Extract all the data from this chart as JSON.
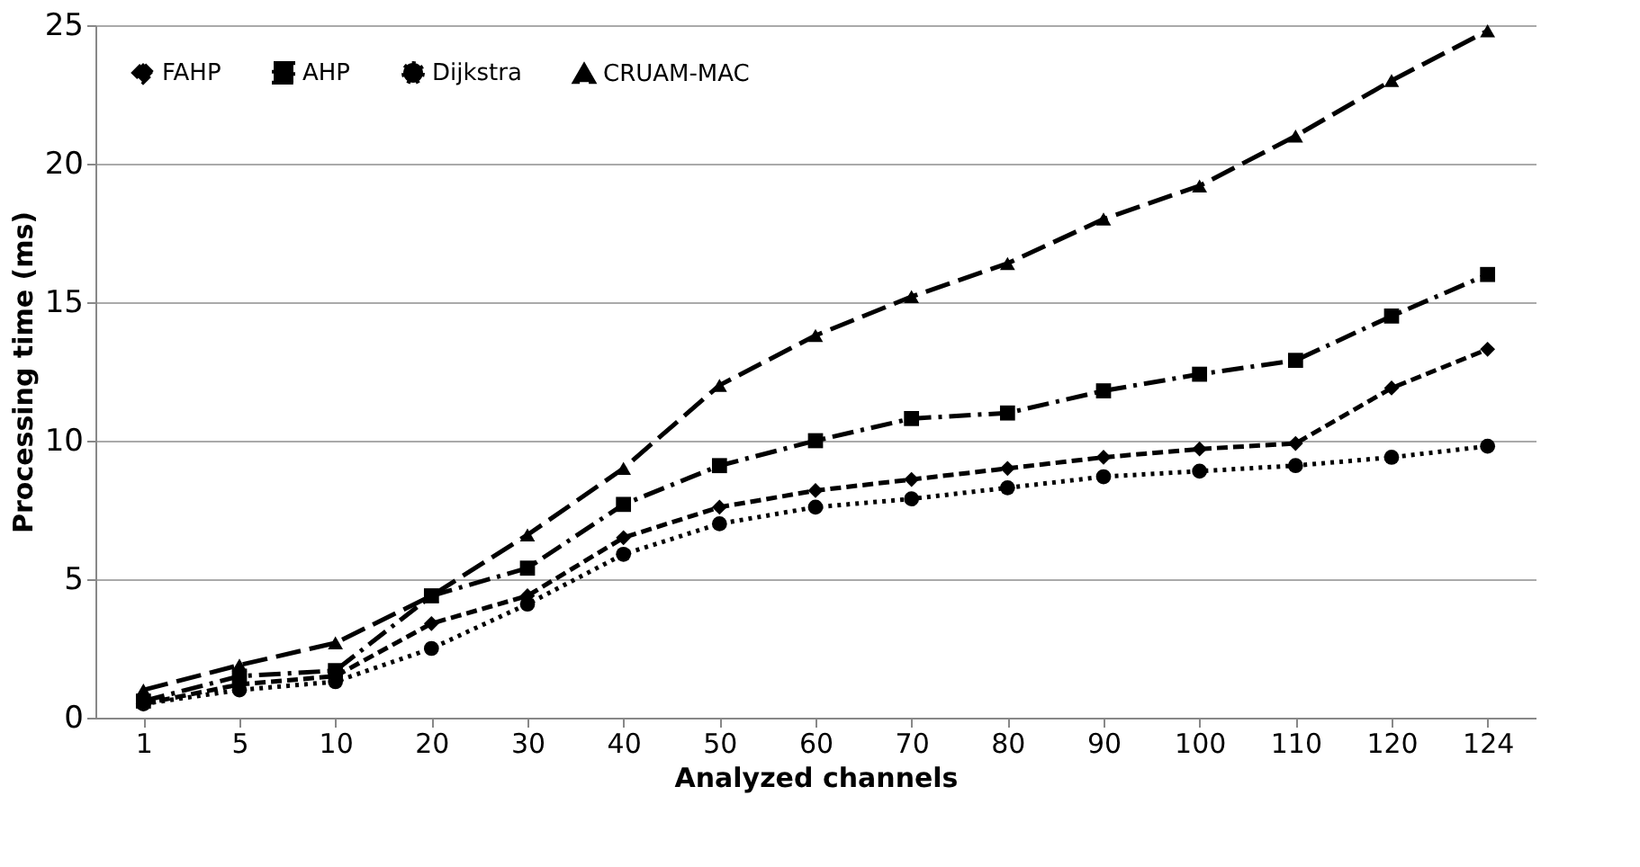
{
  "chart_data": {
    "type": "line",
    "xlabel": "Analyzed channels",
    "ylabel": "Processing time (ms)",
    "categories": [
      "1",
      "5",
      "10",
      "20",
      "30",
      "40",
      "50",
      "60",
      "70",
      "80",
      "90",
      "100",
      "110",
      "120",
      "124"
    ],
    "ylim": [
      0,
      25
    ],
    "yticks": [
      0,
      5,
      10,
      15,
      20,
      25
    ],
    "grid": "y",
    "legend": "top left",
    "series": [
      {
        "name": "FAHP",
        "color": "#000000",
        "marker": "diamond",
        "line_style": "dashed",
        "values": [
          0.5,
          1.2,
          1.5,
          3.4,
          4.4,
          6.5,
          7.6,
          8.2,
          8.6,
          9.0,
          9.4,
          9.7,
          9.9,
          11.9,
          13.3
        ]
      },
      {
        "name": "AHP",
        "color": "#000000",
        "marker": "square",
        "line_style": "dashed",
        "values": [
          0.6,
          1.5,
          1.7,
          4.4,
          5.4,
          7.7,
          9.1,
          10.0,
          10.8,
          11.0,
          11.8,
          12.4,
          12.9,
          14.5,
          16.0
        ]
      },
      {
        "name": "Dijkstra",
        "color": "#000000",
        "marker": "circle",
        "line_style": "dotted",
        "values": [
          0.5,
          1.0,
          1.3,
          2.5,
          4.1,
          5.9,
          7.0,
          7.6,
          7.9,
          8.3,
          8.7,
          8.9,
          9.1,
          9.4,
          9.8
        ]
      },
      {
        "name": "CRUAM-MAC",
        "color": "#000000",
        "marker": "triangle",
        "line_style": "dashed",
        "values": [
          1.0,
          1.9,
          2.7,
          4.4,
          6.6,
          9.0,
          12.0,
          13.8,
          15.2,
          16.4,
          18.0,
          19.2,
          21.0,
          23.0,
          24.8
        ]
      }
    ]
  }
}
